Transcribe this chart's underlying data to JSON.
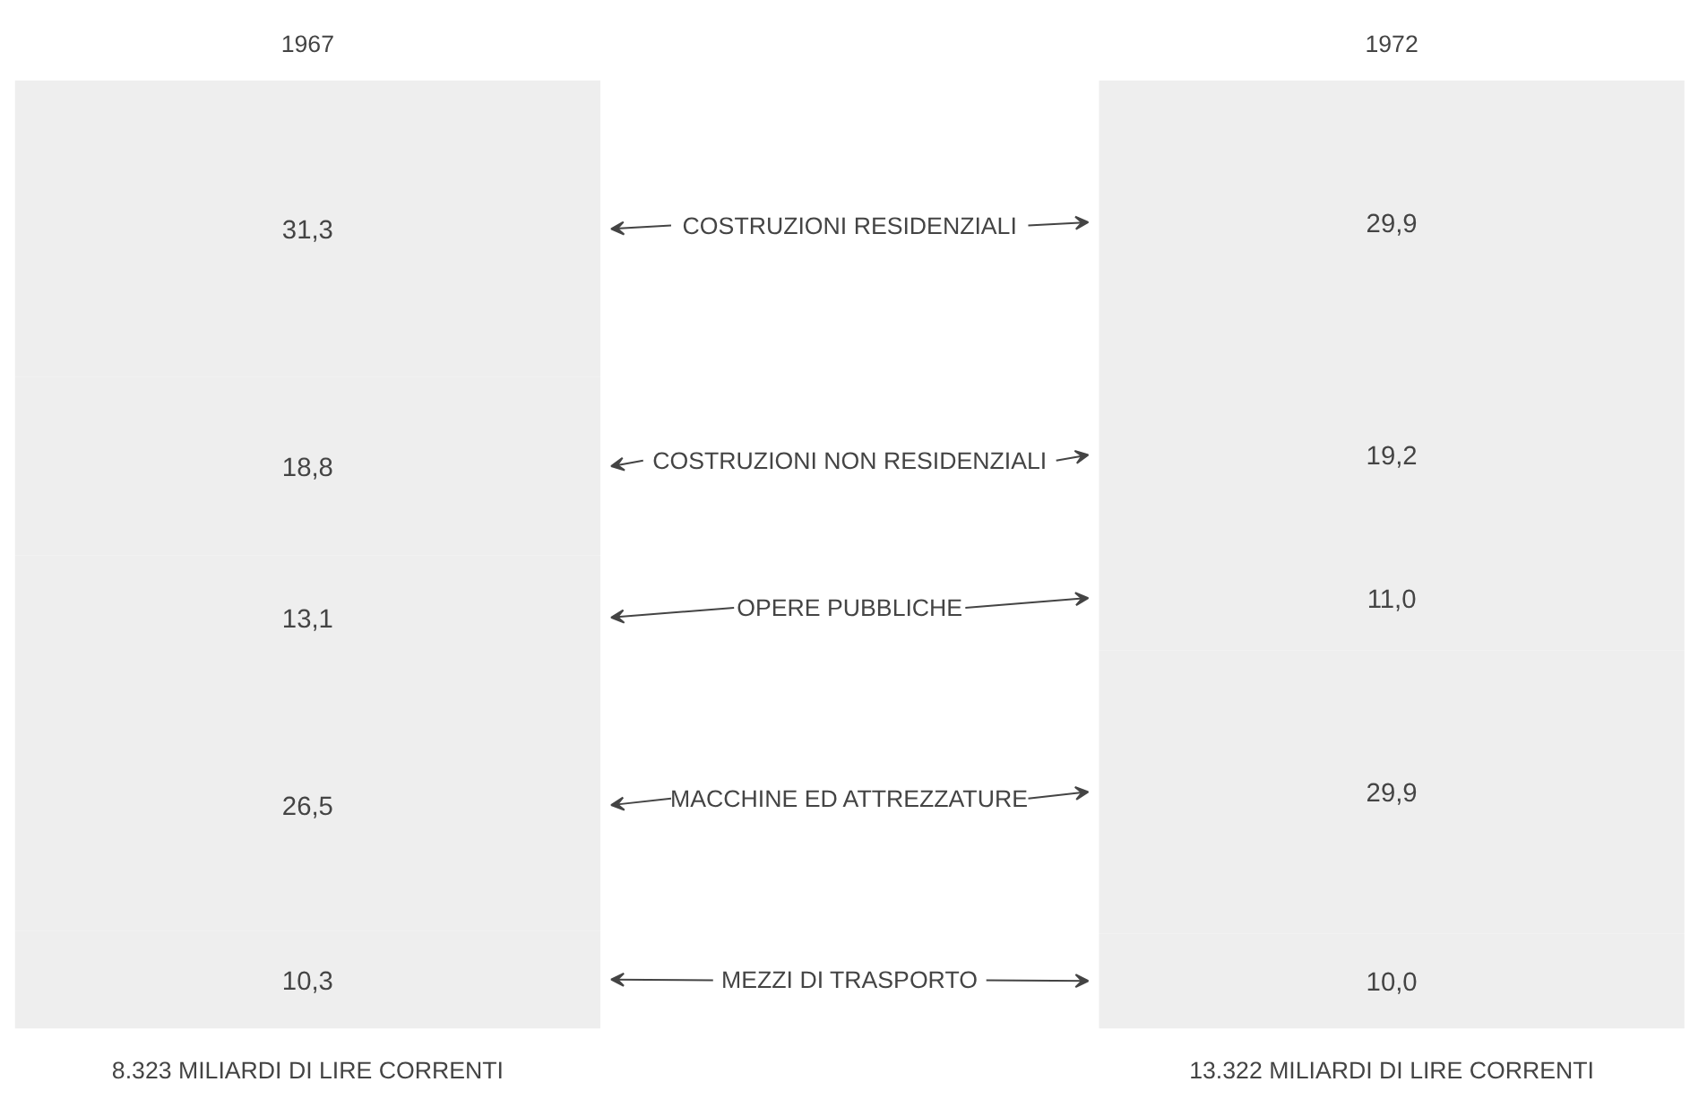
{
  "chart_data": {
    "type": "bar",
    "stacked": true,
    "categories": [
      "1967",
      "1972"
    ],
    "series": [
      {
        "name": "MEZZI DI TRASPORTO",
        "color": "#eeeeee",
        "values": [
          10.3,
          10.0
        ],
        "value_labels": [
          "10,3",
          "10,0"
        ]
      },
      {
        "name": "MACCHINE ED ATTREZZATURE",
        "color": "#eeeeee",
        "values": [
          26.5,
          29.9
        ],
        "value_labels": [
          "26,5",
          "29,9"
        ]
      },
      {
        "name": "OPERE PUBBLICHE",
        "color": "#eeeeee",
        "values": [
          13.1,
          11.0
        ],
        "value_labels": [
          "13,1",
          "11,0"
        ]
      },
      {
        "name": "COSTRUZIONI NON RESIDENZIALI",
        "color": "#eeeeee",
        "values": [
          18.8,
          19.2
        ],
        "value_labels": [
          "18,8",
          "19,2"
        ]
      },
      {
        "name": "COSTRUZIONI RESIDENZIALI",
        "color": "#eeeeee",
        "values": [
          31.3,
          29.9
        ],
        "value_labels": [
          "31,3",
          "29,9"
        ]
      }
    ],
    "annotations": [
      "8.323 MILIARDI DI LIRE CORRENTI",
      "13.322 MILIARDI DI LIRE CORRENTI"
    ]
  }
}
